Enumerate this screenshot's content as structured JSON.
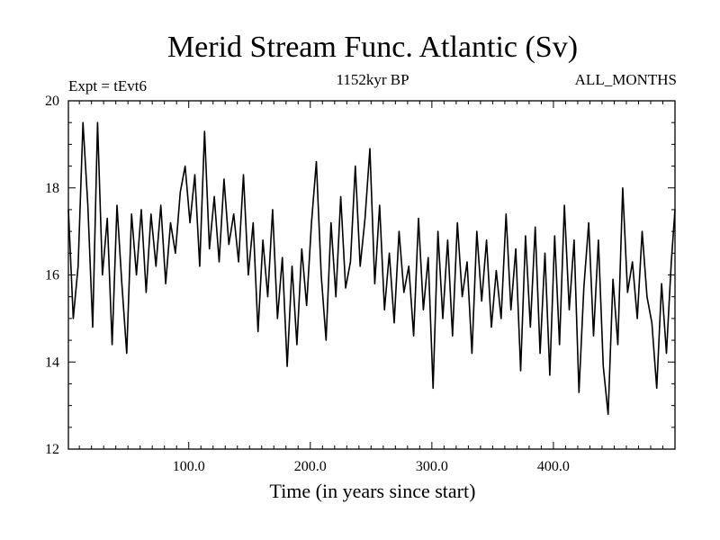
{
  "chart_data": {
    "type": "line",
    "title": "Merid Stream Func. Atlantic (Sv)",
    "subtitle_left": "Expt = tEvt6",
    "subtitle_center": "1152kyr BP",
    "subtitle_right": "ALL_MONTHS",
    "xlabel": "Time (in years since start)",
    "ylabel": "",
    "xlim": [
      1,
      500
    ],
    "ylim": [
      12,
      20
    ],
    "xticks": [
      100,
      200,
      300,
      400
    ],
    "xtick_labels": [
      "100.0",
      "200.0",
      "300.0",
      "400.0"
    ],
    "yticks": [
      12,
      14,
      16,
      18,
      20
    ],
    "ytick_labels": [
      "12",
      "14",
      "16",
      "18",
      "20"
    ],
    "series": [
      {
        "name": "Merid Stream Func. Atlantic",
        "color": "#000000",
        "x": [
          1,
          5,
          9,
          13,
          17,
          21,
          25,
          29,
          33,
          37,
          41,
          45,
          49,
          53,
          57,
          61,
          65,
          69,
          73,
          77,
          81,
          85,
          89,
          93,
          97,
          101,
          105,
          109,
          113,
          117,
          121,
          125,
          129,
          133,
          137,
          141,
          145,
          149,
          153,
          157,
          161,
          165,
          169,
          173,
          177,
          181,
          185,
          189,
          193,
          197,
          201,
          205,
          209,
          213,
          217,
          221,
          225,
          229,
          233,
          237,
          241,
          245,
          249,
          253,
          257,
          261,
          265,
          269,
          273,
          277,
          281,
          285,
          289,
          293,
          297,
          301,
          305,
          309,
          313,
          317,
          321,
          325,
          329,
          333,
          337,
          341,
          345,
          349,
          353,
          357,
          361,
          365,
          369,
          373,
          377,
          381,
          385,
          389,
          393,
          397,
          401,
          405,
          409,
          413,
          417,
          421,
          425,
          429,
          433,
          437,
          441,
          445,
          449,
          453,
          457,
          461,
          465,
          469,
          473,
          477,
          481,
          485,
          489,
          493,
          497,
          500
        ],
        "values": [
          17.5,
          15.0,
          16.2,
          19.5,
          17.6,
          14.8,
          19.5,
          16.0,
          17.3,
          14.4,
          17.6,
          15.8,
          14.2,
          17.4,
          16.0,
          17.5,
          15.6,
          17.4,
          16.2,
          17.6,
          15.8,
          17.2,
          16.5,
          17.9,
          18.5,
          17.2,
          18.3,
          16.2,
          19.3,
          16.6,
          17.8,
          16.3,
          18.2,
          16.7,
          17.4,
          16.3,
          18.3,
          16.0,
          17.2,
          14.7,
          16.8,
          15.5,
          17.5,
          15.0,
          16.4,
          13.9,
          16.2,
          14.4,
          16.6,
          15.3,
          17.2,
          18.6,
          16.0,
          14.5,
          17.2,
          15.5,
          17.8,
          15.7,
          16.3,
          18.5,
          16.2,
          17.3,
          18.9,
          15.8,
          17.6,
          15.2,
          16.5,
          14.9,
          17.0,
          15.6,
          16.2,
          14.6,
          17.3,
          15.2,
          16.4,
          13.4,
          17.0,
          15.0,
          16.8,
          14.6,
          17.2,
          15.5,
          16.3,
          14.2,
          17.0,
          15.4,
          16.8,
          14.8,
          16.1,
          15.0,
          17.4,
          15.2,
          16.6,
          13.8,
          16.9,
          14.8,
          17.1,
          14.2,
          16.5,
          13.7,
          16.9,
          14.4,
          17.6,
          15.2,
          16.8,
          13.3,
          15.7,
          17.2,
          14.6,
          16.8,
          13.9,
          12.8,
          15.9,
          14.4,
          18.0,
          15.6,
          16.3,
          15.0,
          17.0,
          15.5,
          14.9,
          13.4,
          15.8,
          14.2,
          16.3,
          17.5
        ]
      }
    ]
  }
}
